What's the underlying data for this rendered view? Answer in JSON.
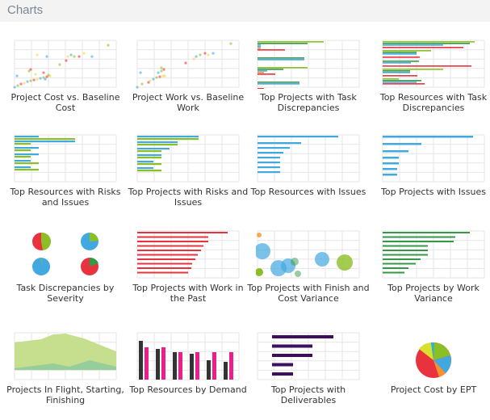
{
  "header": {
    "title": "Charts"
  },
  "charts": [
    {
      "title": "Project Cost vs. Baseline Cost"
    },
    {
      "title": "Project Work vs. Baseline Work"
    },
    {
      "title": "Top Projects with Task Discrepancies"
    },
    {
      "title": "Top Resources with Task Discrepancies"
    },
    {
      "title": "Top Resources with Risks and Issues"
    },
    {
      "title": "Top Projects with Risks and Issues"
    },
    {
      "title": "Top Resources with Issues"
    },
    {
      "title": "Top Projects with Issues"
    },
    {
      "title": "Task Discrepancies by Severity"
    },
    {
      "title": "Top Projects with Work in the Past"
    },
    {
      "title": "Top Projects with Finish and Cost Variance"
    },
    {
      "title": "Top Projects by Work Variance"
    },
    {
      "title": "Projects In Flight, Starting, Finishing"
    },
    {
      "title": "Top Resources by Demand"
    },
    {
      "title": "Top Projects with Deliverables"
    },
    {
      "title": "Project Cost by EPT"
    }
  ],
  "colors": {
    "blue": "#41a8e0",
    "green": "#8cbf26",
    "darkgreen": "#339947",
    "red": "#e8333e",
    "purple": "#3d0f5c",
    "pink": "#ec1e8c",
    "black": "#333333"
  }
}
